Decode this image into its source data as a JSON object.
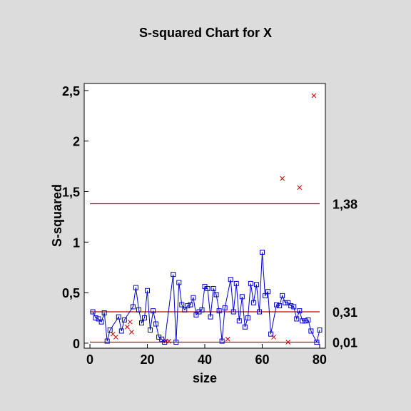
{
  "chart_data": {
    "type": "line",
    "title": "S-squared Chart for X",
    "xlabel": "size",
    "ylabel": "S-squared",
    "xlim": [
      -2,
      82
    ],
    "ylim": [
      -0.05,
      2.57
    ],
    "xticks": [
      0,
      20,
      40,
      60,
      80
    ],
    "xtick_labels": [
      "0",
      "20",
      "40",
      "60",
      "80"
    ],
    "yticks": [
      0,
      0.5,
      1,
      1.5,
      2,
      2.5
    ],
    "ytick_labels": [
      "0",
      "0,5",
      "1",
      "1,5",
      "2",
      "2,5"
    ],
    "grid": false,
    "limits": [
      {
        "name": "UCL",
        "value": 1.38,
        "label": "1,38"
      },
      {
        "name": "CL",
        "value": 0.31,
        "label": "0,31"
      },
      {
        "name": "LCL",
        "value": 0.01,
        "label": "0,01"
      }
    ],
    "colors": {
      "series": "#0000cc",
      "limit": "#cc0000",
      "excluded": "#cc0000"
    },
    "series": [
      {
        "x": [
          1,
          2,
          3,
          4,
          5,
          6,
          7,
          10,
          11,
          12,
          15,
          16,
          17,
          18,
          19,
          20,
          21,
          22,
          23,
          24,
          25,
          26,
          29,
          30,
          31,
          32,
          33,
          34,
          35,
          36,
          37,
          38,
          39,
          40,
          41,
          42,
          43,
          44,
          45,
          46,
          47,
          49,
          50,
          51,
          52,
          53,
          54,
          55,
          56,
          57,
          58,
          59,
          60,
          61,
          62,
          63,
          65,
          66,
          67,
          68,
          69,
          70,
          71,
          72,
          73,
          74,
          75,
          76,
          77,
          79,
          80
        ],
        "values": [
          0.31,
          0.25,
          0.24,
          0.21,
          0.3,
          0.02,
          0.13,
          0.26,
          0.12,
          0.23,
          0.36,
          0.55,
          0.33,
          0.2,
          0.25,
          0.52,
          0.13,
          0.32,
          0.19,
          0.06,
          0.04,
          0.01,
          0.68,
          0.01,
          0.6,
          0.38,
          0.33,
          0.37,
          0.38,
          0.45,
          0.28,
          0.31,
          0.33,
          0.56,
          0.54,
          0.26,
          0.54,
          0.48,
          0.32,
          0.02,
          0.35,
          0.63,
          0.31,
          0.59,
          0.22,
          0.46,
          0.16,
          0.25,
          0.59,
          0.4,
          0.58,
          0.31,
          0.9,
          0.47,
          0.51,
          0.09,
          0.38,
          0.37,
          0.47,
          0.4,
          0.4,
          0.37,
          0.36,
          0.24,
          0.32,
          0.22,
          0.22,
          0.23,
          0.12,
          0.01,
          0.13
        ]
      }
    ],
    "excluded_points": {
      "x": [
        8,
        9,
        13,
        14,
        14.5,
        26.5,
        27.5,
        48,
        64,
        67,
        69,
        73,
        78
      ],
      "values": [
        0.09,
        0.06,
        0.16,
        0.21,
        0.11,
        0.02,
        0.02,
        0.04,
        0.06,
        1.63,
        0.01,
        1.54,
        2.45
      ]
    }
  }
}
